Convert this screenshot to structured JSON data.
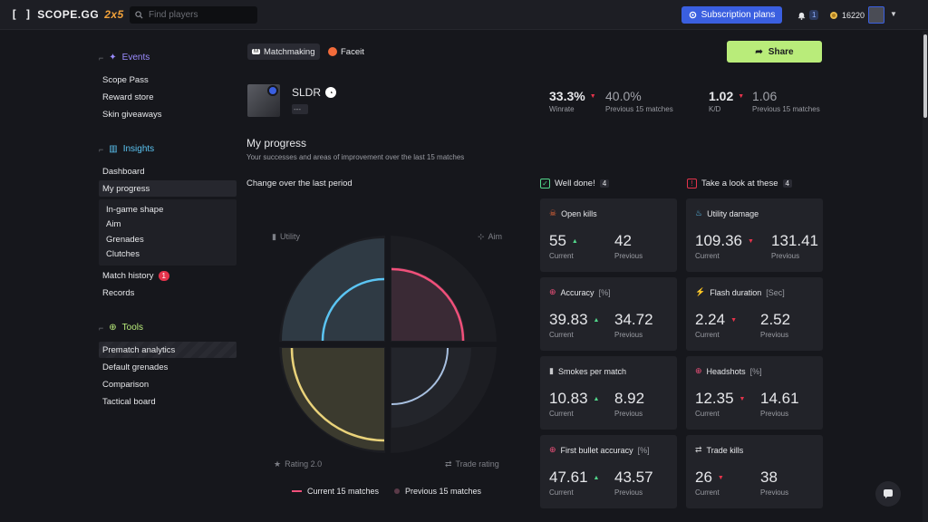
{
  "brand": {
    "name": "SCOPE.GG",
    "tag": "2x5"
  },
  "search": {
    "placeholder": "Find players"
  },
  "topbar": {
    "subscription_label": "Subscription plans",
    "notif_count": "1",
    "coins": "16220"
  },
  "sidebar": {
    "events": {
      "heading": "Events",
      "items": [
        "Scope Pass",
        "Reward store",
        "Skin giveaways"
      ]
    },
    "insights": {
      "heading": "Insights",
      "items": [
        "Dashboard",
        "My progress"
      ],
      "subitems": [
        "In-game shape",
        "Aim",
        "Grenades",
        "Clutches"
      ],
      "match_history": "Match history",
      "match_history_badge": "1",
      "records": "Records"
    },
    "tools": {
      "heading": "Tools",
      "items": [
        "Prematch analytics",
        "Default grenades",
        "Comparison",
        "Tactical board"
      ]
    }
  },
  "tabs": {
    "matchmaking": "Matchmaking",
    "faceit": "Faceit"
  },
  "share_label": "Share",
  "profile": {
    "name": "SLDR",
    "rank": "---"
  },
  "stats": {
    "winrate": {
      "value": "33.3%",
      "prev": "40.0%",
      "label": "Winrate",
      "prev_label": "Previous 15 matches"
    },
    "kd": {
      "value": "1.02",
      "prev": "1.06",
      "label": "K/D",
      "prev_label": "Previous 15 matches"
    }
  },
  "progress": {
    "title": "My progress",
    "subtitle": "Your successes and areas of improvement over the last 15 matches",
    "change_title": "Change over the last period"
  },
  "radar": {
    "labels": {
      "utility": "Utility",
      "aim": "Aim",
      "rating": "Rating 2.0",
      "trade": "Trade rating"
    },
    "legend": {
      "current": "Current 15 matches",
      "previous": "Previous 15 matches"
    },
    "colors": {
      "utility": "#5bc4f2",
      "aim": "#f0507a",
      "rating": "#e9d27a",
      "trade": "#a8c0e0"
    }
  },
  "well_done": {
    "title": "Well done!",
    "count": "4"
  },
  "look_at": {
    "title": "Take a look at these",
    "count": "4"
  },
  "labels": {
    "current": "Current",
    "previous": "Previous"
  },
  "cards": {
    "open_kills": {
      "title": "Open kills",
      "unit": "",
      "current": "55",
      "previous": "42",
      "trend": "up"
    },
    "accuracy": {
      "title": "Accuracy",
      "unit": "[%]",
      "current": "39.83",
      "previous": "34.72",
      "trend": "up"
    },
    "smokes": {
      "title": "Smokes per match",
      "unit": "",
      "current": "10.83",
      "previous": "8.92",
      "trend": "up"
    },
    "first_bullet": {
      "title": "First bullet accuracy",
      "unit": "[%]",
      "current": "47.61",
      "previous": "43.57",
      "trend": "up"
    },
    "utility_damage": {
      "title": "Utility damage",
      "unit": "",
      "current": "109.36",
      "previous": "131.41",
      "trend": "down"
    },
    "flash_duration": {
      "title": "Flash duration",
      "unit": "[Sec]",
      "current": "2.24",
      "previous": "2.52",
      "trend": "down"
    },
    "headshots": {
      "title": "Headshots",
      "unit": "[%]",
      "current": "12.35",
      "previous": "14.61",
      "trend": "down"
    },
    "trade_kills": {
      "title": "Trade kills",
      "unit": "",
      "current": "26",
      "previous": "38",
      "trend": "down"
    }
  }
}
